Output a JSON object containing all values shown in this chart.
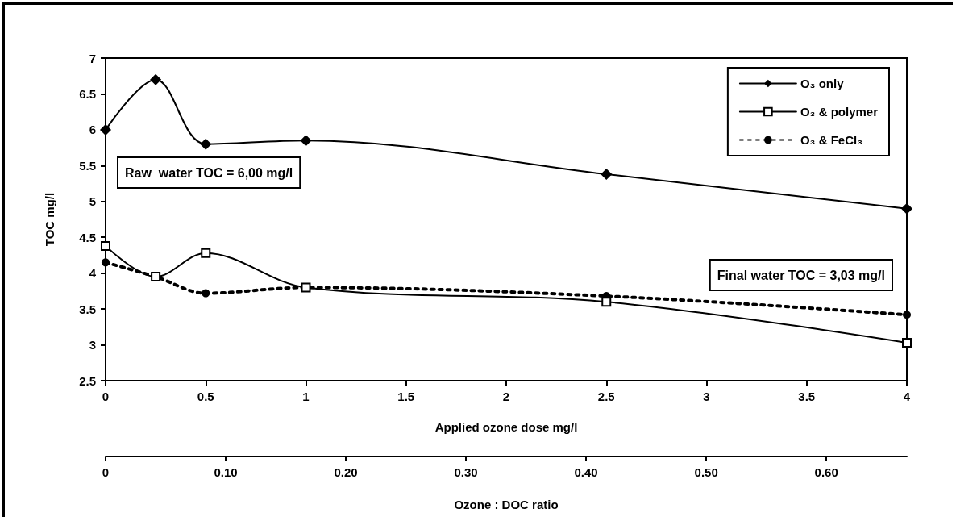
{
  "chart_data": {
    "type": "line",
    "xlabel": "Applied ozone dose mg/l",
    "ylabel": "TOC mg/l",
    "x2label": "Ozone : DOC ratio",
    "x": [
      0,
      0.25,
      0.5,
      1,
      2.5,
      4
    ],
    "series": [
      {
        "name": "O₃ only",
        "color": "#000000",
        "marker": "diamond",
        "line_style": "solid",
        "values": [
          6.0,
          6.7,
          5.8,
          5.85,
          5.38,
          4.9
        ]
      },
      {
        "name": "O₃ & polymer",
        "color": "#000000",
        "marker": "square",
        "line_style": "solid",
        "values": [
          4.38,
          3.95,
          4.28,
          3.8,
          3.6,
          3.03
        ]
      },
      {
        "name": "O₃ & FeCl₃",
        "color": "#000000",
        "marker": "circle",
        "line_style": "dashed",
        "values": [
          4.15,
          3.95,
          3.72,
          3.8,
          3.68,
          3.42
        ]
      }
    ],
    "xlim": [
      0,
      4
    ],
    "xticks": [
      0,
      0.5,
      1,
      1.5,
      2,
      2.5,
      3,
      3.5,
      4
    ],
    "ylim": [
      2.5,
      7
    ],
    "yticks": [
      2.5,
      3,
      3.5,
      4,
      4.5,
      5,
      5.5,
      6,
      6.5,
      7
    ],
    "x2lim": [
      0,
      0.667
    ],
    "x2ticks": [
      0,
      {
        "value": 0.1,
        "label": "0.10"
      },
      {
        "value": 0.2,
        "label": "0.20"
      },
      {
        "value": 0.3,
        "label": "0.30"
      },
      {
        "value": 0.4,
        "label": "0.40"
      },
      {
        "value": 0.5,
        "label": "0.50"
      },
      {
        "value": 0.6,
        "label": "0.60"
      }
    ],
    "annotations": [
      "Raw  water TOC = 6,00 mg/l",
      "Final water TOC = 3,03 mg/l"
    ],
    "grid": false,
    "legend": "top right"
  }
}
